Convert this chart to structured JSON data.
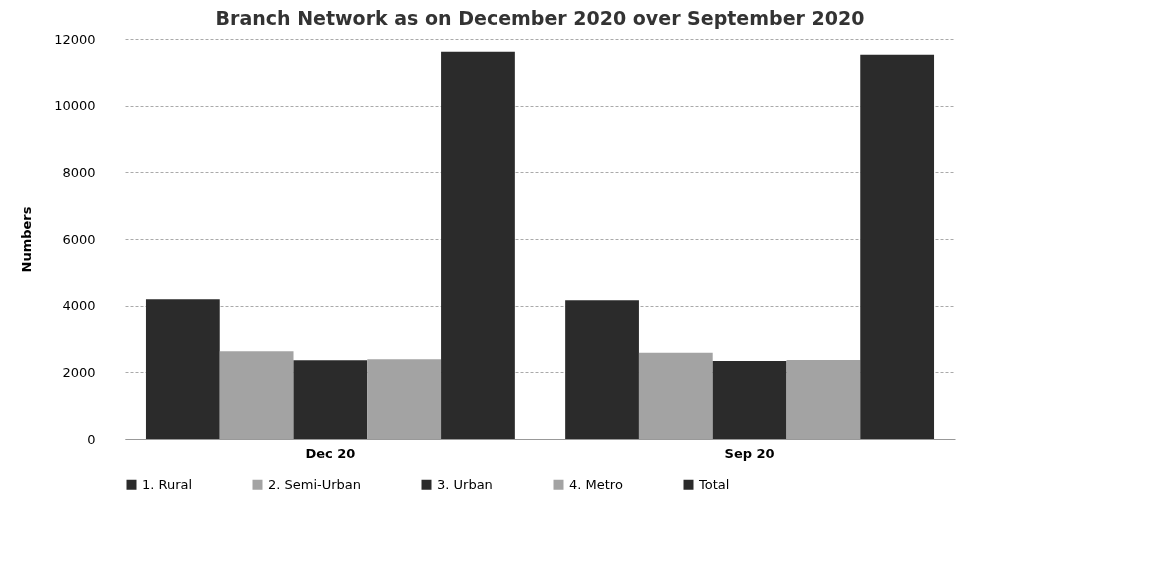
{
  "chart_data": {
    "type": "bar",
    "title": "Branch Network as on December 2020 over September 2020",
    "ylabel": "Numbers",
    "categories": [
      "Dec 20",
      "Sep 20"
    ],
    "series": [
      {
        "name": "1.   Rural",
        "color": "#2b2b2b",
        "values": [
          4190,
          4160
        ]
      },
      {
        "name": "2.   Semi-Urban",
        "color": "#a3a3a3",
        "values": [
          2630,
          2590
        ]
      },
      {
        "name": "3.   Urban",
        "color": "#2b2b2b",
        "values": [
          2360,
          2340
        ]
      },
      {
        "name": "4.   Metro",
        "color": "#a3a3a3",
        "values": [
          2390,
          2370
        ]
      },
      {
        "name": "Total",
        "color": "#2b2b2b",
        "values": [
          11620,
          11530
        ]
      }
    ],
    "ylim": [
      0,
      12000
    ],
    "yticks": [
      0,
      2000,
      4000,
      6000,
      8000,
      10000,
      12000
    ],
    "grid": "y",
    "legend": "bottom"
  }
}
